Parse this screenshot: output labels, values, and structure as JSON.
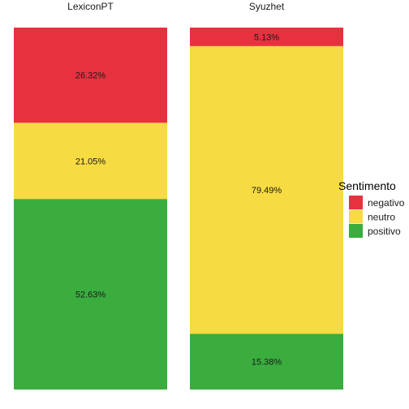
{
  "chart_data": {
    "type": "bar",
    "stacked": true,
    "normalized_percent": true,
    "facets": [
      "LexiconPT",
      "Syuzhet"
    ],
    "series": [
      {
        "name": "negativo",
        "color": "#E8313F",
        "values": [
          26.32,
          5.13
        ],
        "labels": [
          "26.32%",
          "5.13%"
        ]
      },
      {
        "name": "neutro",
        "color": "#F7DB42",
        "values": [
          21.05,
          79.49
        ],
        "labels": [
          "21.05%",
          "79.49%"
        ]
      },
      {
        "name": "positivo",
        "color": "#3AAD3E",
        "values": [
          52.63,
          15.38
        ],
        "labels": [
          "52.63%",
          "15.38%"
        ]
      }
    ],
    "legend": {
      "title": "Sentimento",
      "position": "right"
    },
    "grid": false,
    "axes_visible": false
  }
}
